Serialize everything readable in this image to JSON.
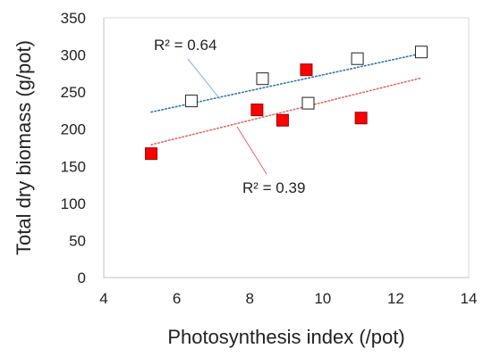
{
  "chart_data": {
    "type": "scatter",
    "xlabel": "Photosynthesis index (/pot)",
    "ylabel": "Total dry biomass (g/pot)",
    "xlim": [
      4,
      14
    ],
    "ylim": [
      0,
      350
    ],
    "xticks": [
      "4",
      "6",
      "8",
      "10",
      "12",
      "14"
    ],
    "yticks": [
      "0",
      "50",
      "100",
      "150",
      "200",
      "250",
      "300",
      "350"
    ],
    "grid": false,
    "series": [
      {
        "marker": "open-square",
        "color": "#000000",
        "points": [
          [
            6.4,
            238
          ],
          [
            8.35,
            268
          ],
          [
            9.6,
            235
          ],
          [
            10.95,
            295
          ],
          [
            12.7,
            304
          ]
        ],
        "trendline": {
          "x": [
            5.3,
            12.8
          ],
          "y": [
            223,
            303
          ],
          "color": "#2e75b6",
          "style": "dotted"
        },
        "r2_label": "R² = 0.64",
        "r2_leader_color": "#6fa8dc"
      },
      {
        "marker": "filled-square",
        "color": "#ff0000",
        "points": [
          [
            5.3,
            167
          ],
          [
            8.2,
            226
          ],
          [
            8.9,
            212
          ],
          [
            9.55,
            280
          ],
          [
            11.05,
            215
          ]
        ],
        "trendline": {
          "x": [
            5.3,
            12.7
          ],
          "y": [
            179,
            269
          ],
          "color": "#e06666",
          "style": "dotted"
        },
        "r2_label": "R² = 0.39",
        "r2_leader_color": "#e06666"
      }
    ]
  }
}
